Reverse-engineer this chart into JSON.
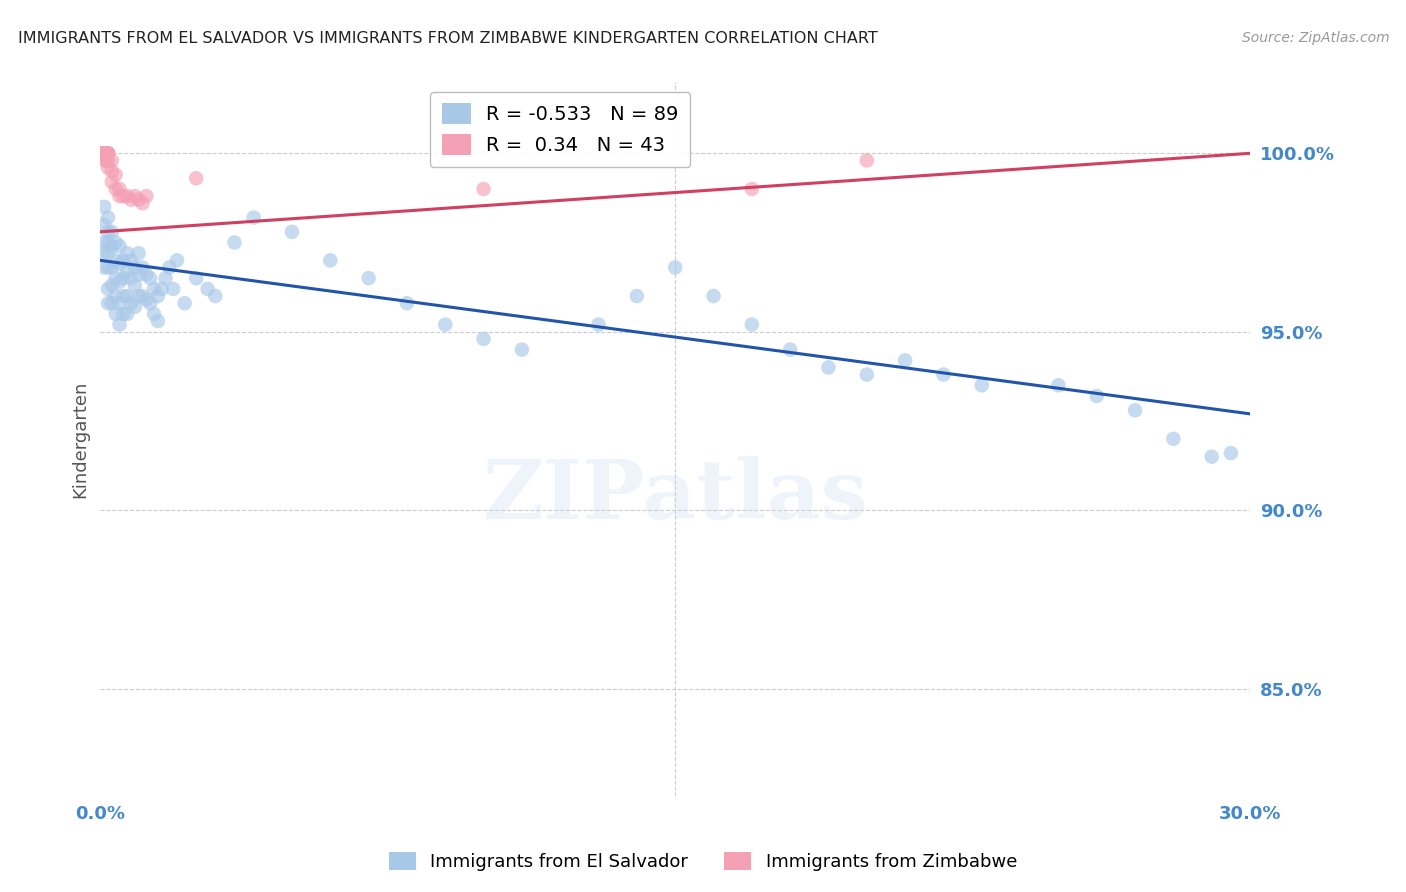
{
  "title": "IMMIGRANTS FROM EL SALVADOR VS IMMIGRANTS FROM ZIMBABWE KINDERGARTEN CORRELATION CHART",
  "source": "Source: ZipAtlas.com",
  "ylabel": "Kindergarten",
  "ytick_labels": [
    "85.0%",
    "90.0%",
    "95.0%",
    "100.0%"
  ],
  "ytick_values": [
    0.85,
    0.9,
    0.95,
    1.0
  ],
  "blue_color": "#a8c8e8",
  "pink_color": "#f4a0b5",
  "blue_line_color": "#2255aa",
  "pink_line_color": "#d04060",
  "blue_R": -0.533,
  "pink_R": 0.34,
  "blue_N": 89,
  "pink_N": 43,
  "xmin": 0.0,
  "xmax": 0.3,
  "ymin": 0.82,
  "ymax": 1.02,
  "watermark": "ZIPatlas",
  "grid_color": "#cccccc",
  "tick_color": "#4488cc",
  "blue_x": [
    0.001,
    0.001,
    0.001,
    0.001,
    0.001,
    0.002,
    0.002,
    0.002,
    0.002,
    0.002,
    0.002,
    0.002,
    0.003,
    0.003,
    0.003,
    0.003,
    0.003,
    0.004,
    0.004,
    0.004,
    0.004,
    0.004,
    0.005,
    0.005,
    0.005,
    0.005,
    0.005,
    0.006,
    0.006,
    0.006,
    0.006,
    0.007,
    0.007,
    0.007,
    0.007,
    0.008,
    0.008,
    0.008,
    0.009,
    0.009,
    0.009,
    0.01,
    0.01,
    0.01,
    0.011,
    0.011,
    0.012,
    0.012,
    0.013,
    0.013,
    0.014,
    0.014,
    0.015,
    0.015,
    0.016,
    0.017,
    0.018,
    0.019,
    0.02,
    0.022,
    0.025,
    0.028,
    0.03,
    0.035,
    0.04,
    0.05,
    0.06,
    0.07,
    0.08,
    0.09,
    0.1,
    0.11,
    0.13,
    0.14,
    0.15,
    0.16,
    0.17,
    0.18,
    0.19,
    0.2,
    0.21,
    0.22,
    0.23,
    0.25,
    0.26,
    0.27,
    0.28,
    0.29,
    0.295
  ],
  "blue_y": [
    0.975,
    0.972,
    0.98,
    0.968,
    0.985,
    0.978,
    0.972,
    0.968,
    0.962,
    0.958,
    0.982,
    0.975,
    0.978,
    0.974,
    0.968,
    0.963,
    0.958,
    0.975,
    0.97,
    0.965,
    0.96,
    0.955,
    0.974,
    0.969,
    0.964,
    0.958,
    0.952,
    0.97,
    0.965,
    0.96,
    0.955,
    0.972,
    0.967,
    0.96,
    0.955,
    0.97,
    0.965,
    0.958,
    0.968,
    0.963,
    0.957,
    0.972,
    0.966,
    0.96,
    0.968,
    0.96,
    0.966,
    0.959,
    0.965,
    0.958,
    0.962,
    0.955,
    0.96,
    0.953,
    0.962,
    0.965,
    0.968,
    0.962,
    0.97,
    0.958,
    0.965,
    0.962,
    0.96,
    0.975,
    0.982,
    0.978,
    0.97,
    0.965,
    0.958,
    0.952,
    0.948,
    0.945,
    0.952,
    0.96,
    0.968,
    0.96,
    0.952,
    0.945,
    0.94,
    0.938,
    0.942,
    0.938,
    0.935,
    0.935,
    0.932,
    0.928,
    0.92,
    0.915,
    0.916
  ],
  "pink_x": [
    0.0005,
    0.0005,
    0.0005,
    0.0005,
    0.0005,
    0.0008,
    0.0008,
    0.0008,
    0.001,
    0.001,
    0.001,
    0.001,
    0.001,
    0.001,
    0.001,
    0.0012,
    0.0012,
    0.0015,
    0.0015,
    0.002,
    0.002,
    0.002,
    0.002,
    0.002,
    0.002,
    0.003,
    0.003,
    0.003,
    0.004,
    0.004,
    0.005,
    0.005,
    0.006,
    0.007,
    0.008,
    0.009,
    0.01,
    0.011,
    0.012,
    0.025,
    0.1,
    0.17,
    0.2
  ],
  "pink_y": [
    1.0,
    1.0,
    1.0,
    1.0,
    1.0,
    1.0,
    1.0,
    1.0,
    1.0,
    1.0,
    1.0,
    1.0,
    1.0,
    1.0,
    1.0,
    1.0,
    0.998,
    1.0,
    0.998,
    1.0,
    1.0,
    1.0,
    1.0,
    0.998,
    0.996,
    0.998,
    0.995,
    0.992,
    0.994,
    0.99,
    0.99,
    0.988,
    0.988,
    0.988,
    0.987,
    0.988,
    0.987,
    0.986,
    0.988,
    0.993,
    0.99,
    0.99,
    0.998
  ]
}
